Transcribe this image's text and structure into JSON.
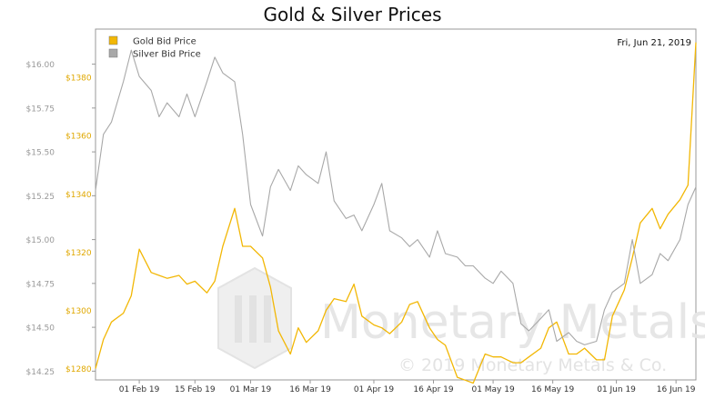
{
  "chart_data": {
    "type": "line",
    "title": "Gold & Silver Prices",
    "date_label": "Fri, Jun 21, 2019",
    "watermark": "Monetary Metals",
    "copyright": "© 2019 Monetary Metals & Co.",
    "x": [
      "2019-01-21",
      "2019-01-23",
      "2019-01-25",
      "2019-01-28",
      "2019-01-30",
      "2019-02-01",
      "2019-02-04",
      "2019-02-06",
      "2019-02-08",
      "2019-02-11",
      "2019-02-13",
      "2019-02-15",
      "2019-02-18",
      "2019-02-20",
      "2019-02-22",
      "2019-02-25",
      "2019-02-27",
      "2019-03-01",
      "2019-03-04",
      "2019-03-06",
      "2019-03-08",
      "2019-03-11",
      "2019-03-13",
      "2019-03-15",
      "2019-03-18",
      "2019-03-20",
      "2019-03-22",
      "2019-03-25",
      "2019-03-27",
      "2019-03-29",
      "2019-04-01",
      "2019-04-03",
      "2019-04-05",
      "2019-04-08",
      "2019-04-10",
      "2019-04-12",
      "2019-04-15",
      "2019-04-17",
      "2019-04-19",
      "2019-04-22",
      "2019-04-24",
      "2019-04-26",
      "2019-04-29",
      "2019-05-01",
      "2019-05-03",
      "2019-05-06",
      "2019-05-08",
      "2019-05-10",
      "2019-05-13",
      "2019-05-15",
      "2019-05-17",
      "2019-05-20",
      "2019-05-22",
      "2019-05-24",
      "2019-05-27",
      "2019-05-29",
      "2019-05-31",
      "2019-06-03",
      "2019-06-05",
      "2019-06-07",
      "2019-06-10",
      "2019-06-12",
      "2019-06-14",
      "2019-06-17",
      "2019-06-19",
      "2019-06-21"
    ],
    "series": [
      {
        "name": "Gold Bid Price",
        "axis": "right",
        "color": "#f2b705",
        "values": [
          1280,
          1290,
          1296,
          1299,
          1305,
          1321,
          1313,
          1312,
          1311,
          1312,
          1309,
          1310,
          1306,
          1310,
          1322,
          1335,
          1322,
          1322,
          1318,
          1308,
          1293,
          1285,
          1294,
          1289,
          1293,
          1300,
          1304,
          1303,
          1309,
          1298,
          1295,
          1294,
          1292,
          1296,
          1302,
          1303,
          1294,
          1290,
          1288,
          1277,
          1276,
          1275,
          1285,
          1284,
          1284,
          1282,
          1282,
          1284,
          1287,
          1294,
          1296,
          1285,
          1285,
          1287,
          1283,
          1283,
          1298,
          1307,
          1318,
          1330,
          1335,
          1328,
          1333,
          1338,
          1343,
          1392
        ]
      },
      {
        "name": "Silver Bid Price",
        "axis": "left",
        "color": "#a8a8a8",
        "values": [
          15.28,
          15.6,
          15.67,
          15.9,
          16.08,
          15.93,
          15.85,
          15.7,
          15.78,
          15.7,
          15.83,
          15.7,
          15.9,
          16.04,
          15.95,
          15.9,
          15.6,
          15.2,
          15.02,
          15.3,
          15.4,
          15.28,
          15.42,
          15.37,
          15.32,
          15.5,
          15.22,
          15.12,
          15.14,
          15.05,
          15.2,
          15.32,
          15.05,
          15.01,
          14.96,
          15.0,
          14.9,
          15.05,
          14.92,
          14.9,
          14.85,
          14.85,
          14.78,
          14.75,
          14.82,
          14.75,
          14.52,
          14.48,
          14.55,
          14.6,
          14.42,
          14.47,
          14.42,
          14.4,
          14.42,
          14.6,
          14.7,
          14.75,
          15.0,
          14.75,
          14.8,
          14.92,
          14.88,
          15.0,
          15.2,
          15.3
        ]
      }
    ],
    "y_left": {
      "ylim": [
        14.2,
        16.2
      ],
      "ticks": [
        "$14.25",
        "$14.50",
        "$14.75",
        "$15.00",
        "$15.25",
        "$15.50",
        "$15.75",
        "$16.00"
      ],
      "tick_values": [
        14.25,
        14.5,
        14.75,
        15.0,
        15.25,
        15.5,
        15.75,
        16.0
      ]
    },
    "y_right": {
      "ylim": [
        1276.1,
        1396.6
      ],
      "ticks": [
        "$1280",
        "$1300",
        "$1320",
        "$1340",
        "$1360",
        "$1380"
      ],
      "tick_values": [
        1280,
        1300,
        1320,
        1340,
        1360,
        1380
      ]
    },
    "x_ticks": [
      {
        "label": "01 Feb 19",
        "date": "2019-02-01"
      },
      {
        "label": "15 Feb 19",
        "date": "2019-02-15"
      },
      {
        "label": "01 Mar 19",
        "date": "2019-03-01"
      },
      {
        "label": "16 Mar 19",
        "date": "2019-03-16"
      },
      {
        "label": "01 Apr 19",
        "date": "2019-04-01"
      },
      {
        "label": "16 Apr 19",
        "date": "2019-04-16"
      },
      {
        "label": "01 May 19",
        "date": "2019-05-01"
      },
      {
        "label": "16 May 19",
        "date": "2019-05-16"
      },
      {
        "label": "01 Jun 19",
        "date": "2019-06-01"
      },
      {
        "label": "16 Jun 19",
        "date": "2019-06-16"
      }
    ],
    "x_range": [
      "2019-01-21",
      "2019-06-21"
    ],
    "grid": true,
    "legend_position": "top-left"
  }
}
